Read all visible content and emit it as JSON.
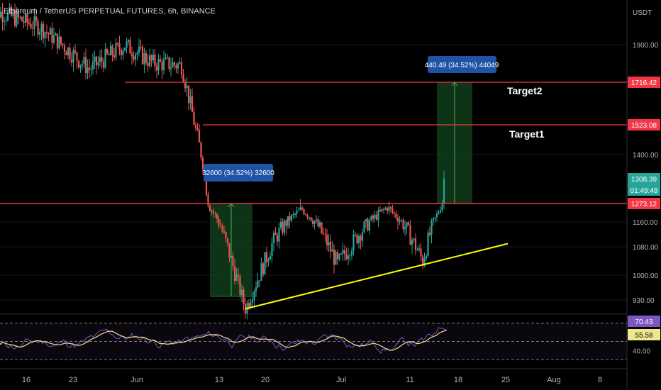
{
  "header": {
    "title": "Ethereum / TetherUS PERPETUAL FUTURES, 6h, BINANCE"
  },
  "price_axis": {
    "unit_label": "USDT",
    "ticks": [
      "1900.00",
      "1400.00",
      "1160.00",
      "1080.00",
      "1000.00",
      "930.00"
    ],
    "tags": [
      {
        "label": "1716.42",
        "kind": "target2-line",
        "color": "#f23645"
      },
      {
        "label": "1523.08",
        "kind": "target1-line",
        "color": "#f23645"
      },
      {
        "label": "1308.39",
        "kind": "last-price",
        "color": "#26a69a"
      },
      {
        "label": "01:49:49",
        "kind": "countdown",
        "color": "#26a69a"
      },
      {
        "label": "1273.12",
        "kind": "support-line",
        "color": "#f23645"
      }
    ]
  },
  "rsi_axis": {
    "ticks": [
      "40.00"
    ],
    "tags": [
      {
        "label": "70.43",
        "kind": "rsi",
        "color": "#7e57c2"
      },
      {
        "label": "55.58",
        "kind": "rsi-ma",
        "color": "#f0e68c"
      }
    ]
  },
  "time_axis": {
    "ticks": [
      "16",
      "23",
      "Jun",
      "13",
      "20",
      "Jul",
      "11",
      "18",
      "25",
      "Aug",
      "8"
    ]
  },
  "annotations": {
    "target1": "Target1",
    "target2": "Target2",
    "measure_left": "32600 (34.52%) 32600",
    "measure_right": "440.49 (34.52%) 44049"
  },
  "colors": {
    "background": "#000000",
    "up": "#26a69a",
    "down": "#ef5350",
    "level_line": "#f23645",
    "trendline": "#ffff00",
    "rsi": "#7e57c2",
    "rsi_ma": "#f0e68c",
    "measure_fill": "#0f3d1a",
    "measure_label_bg": "#1e53a5"
  },
  "chart_data": [
    {
      "type": "candlestick",
      "title": "Ethereum / TetherUS PERPETUAL FUTURES, 6h, BINANCE",
      "y_unit": "USDT",
      "x_ticks": [
        "16",
        "23",
        "Jun",
        "13",
        "20",
        "Jul",
        "11",
        "18",
        "25",
        "Aug",
        "8"
      ],
      "y_ticks": [
        930,
        1000,
        1080,
        1160,
        1400,
        1900
      ],
      "horizontal_levels": [
        {
          "label": "Target2",
          "value": 1716.42
        },
        {
          "label": "Target1",
          "value": 1523.08
        },
        {
          "label": "",
          "value": 1273.12
        }
      ],
      "last_price": 1308.39,
      "trendline": {
        "from": {
          "date": "Jun 18",
          "price": 905
        },
        "to": {
          "date": "Jul 25",
          "price": 1090
        }
      },
      "measure_boxes": [
        {
          "from_date": "Jun 13",
          "to_date": "Jun 19",
          "low": 940,
          "high": 1273,
          "label": "32600 (34.52%) 32600"
        },
        {
          "from_date": "Jul 15",
          "to_date": "Jul 20",
          "low": 1273,
          "high": 1716,
          "label": "440.49 (34.52%) 44049"
        }
      ],
      "price_path_keypoints": [
        {
          "date": "May 13",
          "close": 2100
        },
        {
          "date": "May 20",
          "close": 2000
        },
        {
          "date": "May 27",
          "close": 1780
        },
        {
          "date": "Jun 1",
          "close": 1900
        },
        {
          "date": "Jun 5",
          "close": 1810
        },
        {
          "date": "Jun 9",
          "close": 1800
        },
        {
          "date": "Jun 11",
          "close": 1500
        },
        {
          "date": "Jun 13",
          "close": 1250
        },
        {
          "date": "Jun 18",
          "close": 905
        },
        {
          "date": "Jun 22",
          "close": 1100
        },
        {
          "date": "Jun 26",
          "close": 1240
        },
        {
          "date": "Jul 1",
          "close": 1030
        },
        {
          "date": "Jul 6",
          "close": 1180
        },
        {
          "date": "Jul 8",
          "close": 1250
        },
        {
          "date": "Jul 13",
          "close": 1040
        },
        {
          "date": "Jul 15",
          "close": 1200
        },
        {
          "date": "Jul 16",
          "close": 1308.39
        }
      ]
    },
    {
      "type": "line",
      "title": "",
      "y_ticks": [
        40
      ],
      "series": [
        {
          "name": "",
          "last": 70.43
        },
        {
          "name": "",
          "last": 55.58
        }
      ],
      "levels": [
        70,
        50,
        30
      ],
      "ylim": [
        20,
        80
      ]
    }
  ]
}
